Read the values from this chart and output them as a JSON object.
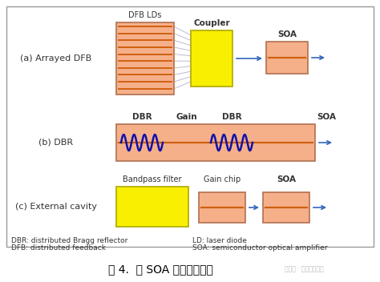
{
  "bg_color": "#ffffff",
  "border_color": "#999999",
  "title": "图 4.  带 SOA 的可调激光器",
  "title_fontsize": 10,
  "salmon": "#F5B08A",
  "salmon_border": "#b07050",
  "yellow": "#F8F000",
  "yellow_border": "#b0a800",
  "dark_orange": "#d06010",
  "navy": "#1010aa",
  "arrow_color": "#3366bb",
  "label_a": "(a) Arrayed DFB",
  "label_b": "(b) DBR",
  "label_c": "(c) External cavity",
  "abbrev1": "DBR: distributed Bragg reflector",
  "abbrev2": "DFB: distributed feedback",
  "abbrev3": "LD: laser diode",
  "abbrev4": "SOA: semiconductor optical amplifier",
  "tag_dfb_lds": "DFB LDs",
  "tag_coupler": "Coupler",
  "tag_soa_a": "SOA",
  "tag_dbr1": "DBR",
  "tag_gain": "Gain",
  "tag_dbr2": "DBR",
  "tag_soa_b": "SOA",
  "tag_bandpass": "Bandpass filter",
  "tag_gainchip": "Gain chip",
  "tag_soa_c": "SOA",
  "watermark": "公众号 · 天津见合八方"
}
